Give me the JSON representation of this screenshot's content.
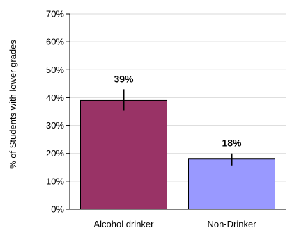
{
  "chart_data": {
    "type": "bar",
    "ylabel": "% of Students with lower grades",
    "xlabel": "",
    "ylim": [
      0,
      70
    ],
    "yticks": [
      0,
      10,
      20,
      30,
      40,
      50,
      60,
      70
    ],
    "ytick_labels": [
      "0%",
      "10%",
      "20%",
      "30%",
      "40%",
      "50%",
      "60%",
      "70%"
    ],
    "categories": [
      "Alcohol drinker",
      "Non-Drinker"
    ],
    "values": [
      39,
      18
    ],
    "data_labels": [
      "39%",
      "18%"
    ],
    "error_bars": [
      [
        35.5,
        43
      ],
      [
        15.5,
        20
      ]
    ],
    "bar_colors": [
      "#993366",
      "#9999FF"
    ],
    "grid": true,
    "legend": "none"
  }
}
